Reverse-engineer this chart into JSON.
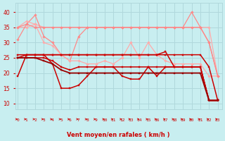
{
  "background_color": "#c8eef0",
  "grid_color": "#b0d8dc",
  "x_label": "Vent moyen/en rafales ( km/h )",
  "x_ticks": [
    0,
    1,
    2,
    3,
    4,
    5,
    6,
    7,
    8,
    9,
    10,
    11,
    12,
    13,
    14,
    15,
    16,
    17,
    18,
    19,
    20,
    21,
    22,
    23
  ],
  "y_ticks": [
    10,
    15,
    20,
    25,
    30,
    35,
    40
  ],
  "xlim": [
    -0.3,
    23.5
  ],
  "ylim": [
    8,
    43
  ],
  "lines": [
    {
      "color": "#ffaaaa",
      "lw": 0.9,
      "marker": "D",
      "markersize": 1.8,
      "x": [
        0,
        1,
        2,
        3,
        4,
        5,
        6,
        7,
        8,
        9,
        10,
        11,
        12,
        13,
        14,
        15,
        16,
        17,
        18,
        19,
        20,
        21,
        22,
        23
      ],
      "y": [
        35,
        35,
        36,
        35,
        35,
        35,
        35,
        35,
        35,
        35,
        35,
        35,
        35,
        35,
        35,
        35,
        35,
        35,
        35,
        35,
        35,
        35,
        35,
        19
      ]
    },
    {
      "color": "#ff8888",
      "lw": 0.9,
      "marker": "D",
      "markersize": 1.8,
      "x": [
        0,
        1,
        2,
        3,
        4,
        5,
        6,
        7,
        8,
        9,
        10,
        11,
        12,
        13,
        14,
        15,
        16,
        17,
        18,
        19,
        20,
        21,
        22,
        23
      ],
      "y": [
        31,
        36,
        39,
        32,
        30,
        26,
        24,
        32,
        35,
        35,
        35,
        35,
        35,
        35,
        35,
        35,
        35,
        35,
        35,
        35,
        40,
        35,
        30,
        19
      ]
    },
    {
      "color": "#ffaaaa",
      "lw": 0.9,
      "marker": "D",
      "markersize": 1.8,
      "x": [
        0,
        1,
        2,
        3,
        4,
        5,
        6,
        7,
        8,
        9,
        10,
        11,
        12,
        13,
        14,
        15,
        16,
        17,
        18,
        19,
        20,
        21,
        22,
        23
      ],
      "y": [
        35,
        37,
        36,
        30,
        29,
        26,
        24,
        24,
        23,
        23,
        24,
        23,
        25,
        30,
        25,
        30,
        26,
        24,
        23,
        23,
        23,
        23,
        19,
        19
      ]
    },
    {
      "color": "#ff8888",
      "lw": 0.9,
      "marker": "D",
      "markersize": 1.8,
      "x": [
        0,
        1,
        2,
        3,
        4,
        5,
        6,
        7,
        8,
        9,
        10,
        11,
        12,
        13,
        14,
        15,
        16,
        17,
        18,
        19,
        20,
        21,
        22,
        23
      ],
      "y": [
        35,
        36,
        35,
        35,
        35,
        35,
        35,
        35,
        35,
        35,
        35,
        35,
        35,
        35,
        35,
        35,
        35,
        35,
        35,
        35,
        35,
        35,
        30,
        19
      ]
    },
    {
      "color": "#cc0000",
      "lw": 1.1,
      "marker": "s",
      "markersize": 1.8,
      "x": [
        0,
        1,
        2,
        3,
        4,
        5,
        6,
        7,
        8,
        9,
        10,
        11,
        12,
        13,
        14,
        15,
        16,
        17,
        18,
        19,
        20,
        21,
        22,
        23
      ],
      "y": [
        19,
        26,
        26,
        26,
        23,
        15,
        15,
        16,
        19,
        22,
        22,
        22,
        19,
        18,
        18,
        22,
        19,
        22,
        22,
        22,
        22,
        22,
        11,
        11
      ]
    },
    {
      "color": "#cc0000",
      "lw": 1.1,
      "marker": "s",
      "markersize": 1.8,
      "x": [
        0,
        1,
        2,
        3,
        4,
        5,
        6,
        7,
        8,
        9,
        10,
        11,
        12,
        13,
        14,
        15,
        16,
        17,
        18,
        19,
        20,
        21,
        22,
        23
      ],
      "y": [
        26,
        26,
        26,
        26,
        26,
        26,
        26,
        26,
        26,
        26,
        26,
        26,
        26,
        26,
        26,
        26,
        26,
        26,
        26,
        26,
        26,
        26,
        22,
        11
      ]
    },
    {
      "color": "#cc0000",
      "lw": 1.1,
      "marker": "s",
      "markersize": 1.8,
      "x": [
        0,
        1,
        2,
        3,
        4,
        5,
        6,
        7,
        8,
        9,
        10,
        11,
        12,
        13,
        14,
        15,
        16,
        17,
        18,
        19,
        20,
        21,
        22,
        23
      ],
      "y": [
        25,
        26,
        26,
        26,
        26,
        26,
        26,
        26,
        26,
        26,
        26,
        26,
        26,
        26,
        26,
        26,
        26,
        27,
        22,
        22,
        22,
        22,
        11,
        11
      ]
    },
    {
      "color": "#cc0000",
      "lw": 1.1,
      "marker": "s",
      "markersize": 1.8,
      "x": [
        0,
        1,
        2,
        3,
        4,
        5,
        6,
        7,
        8,
        9,
        10,
        11,
        12,
        13,
        14,
        15,
        16,
        17,
        18,
        19,
        20,
        21,
        22,
        23
      ],
      "y": [
        25,
        25,
        25,
        25,
        24,
        22,
        21,
        22,
        22,
        22,
        22,
        22,
        22,
        22,
        22,
        22,
        22,
        22,
        22,
        22,
        22,
        22,
        11,
        11
      ]
    },
    {
      "color": "#990000",
      "lw": 1.3,
      "marker": "s",
      "markersize": 1.8,
      "x": [
        0,
        1,
        2,
        3,
        4,
        5,
        6,
        7,
        8,
        9,
        10,
        11,
        12,
        13,
        14,
        15,
        16,
        17,
        18,
        19,
        20,
        21,
        22,
        23
      ],
      "y": [
        25,
        25,
        25,
        24,
        23,
        21,
        20,
        20,
        20,
        20,
        20,
        20,
        20,
        20,
        20,
        20,
        20,
        20,
        20,
        20,
        20,
        20,
        11,
        11
      ]
    }
  ],
  "arrow_color": "#cc0000",
  "label_color": "#cc0000"
}
